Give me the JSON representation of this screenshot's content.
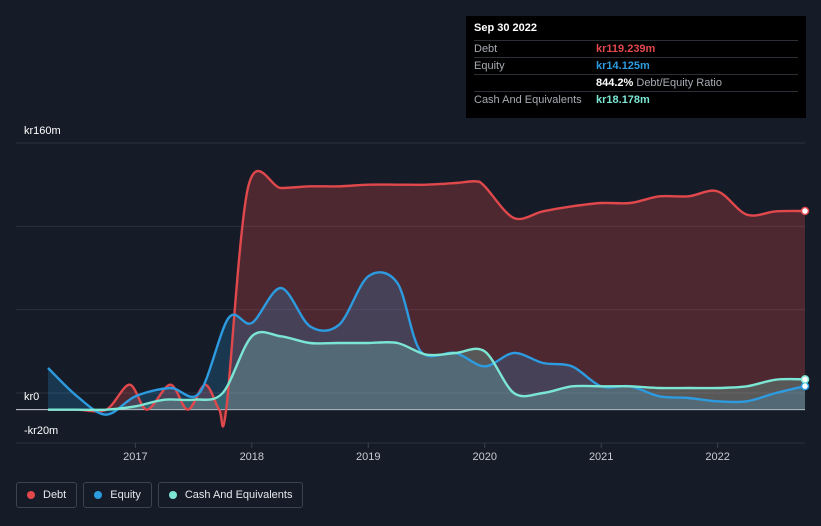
{
  "tooltip": {
    "date": "Sep 30 2022",
    "rows": [
      {
        "label": "Debt",
        "value": "kr119.239m",
        "color": "#e0484c"
      },
      {
        "label": "Equity",
        "value": "kr14.125m",
        "color": "#2d9be0"
      },
      {
        "label": "",
        "value": "844.2%",
        "suffix": "Debt/Equity Ratio",
        "color": "#ffffff"
      },
      {
        "label": "Cash And Equivalents",
        "value": "kr18.178m",
        "color": "#7ce6d4"
      }
    ]
  },
  "legend": [
    {
      "label": "Debt",
      "color": "#e0484c"
    },
    {
      "label": "Equity",
      "color": "#2d9be0"
    },
    {
      "label": "Cash And Equivalents",
      "color": "#7ce6d4"
    }
  ],
  "chart_data": {
    "type": "area",
    "ylim": [
      -20,
      160
    ],
    "y_ticks": [
      "kr160m",
      "kr0",
      "-kr20m"
    ],
    "x_ticks": [
      "2017",
      "2018",
      "2019",
      "2020",
      "2021",
      "2022"
    ],
    "x_range": [
      2016.25,
      2022.75
    ],
    "series": [
      {
        "name": "Debt",
        "color": "#e0484c",
        "x": [
          2016.25,
          2016.5,
          2016.75,
          2016.95,
          2017.1,
          2017.3,
          2017.45,
          2017.6,
          2017.72,
          2017.78,
          2017.97,
          2018.25,
          2018.5,
          2018.75,
          2019.0,
          2019.25,
          2019.5,
          2019.75,
          2019.92,
          2020.0,
          2020.25,
          2020.5,
          2020.75,
          2021.0,
          2021.25,
          2021.5,
          2021.75,
          2022.0,
          2022.25,
          2022.5,
          2022.75
        ],
        "y": [
          0,
          0,
          0,
          15,
          0,
          15,
          0,
          15,
          0,
          0,
          134,
          133,
          134,
          134,
          135,
          135,
          135,
          136,
          137,
          134,
          115,
          119,
          122,
          124,
          124,
          128,
          128,
          131,
          117,
          119,
          119.2
        ]
      },
      {
        "name": "Equity",
        "color": "#2d9be0",
        "x": [
          2016.25,
          2016.5,
          2016.75,
          2017.0,
          2017.3,
          2017.55,
          2017.8,
          2018.0,
          2018.25,
          2018.5,
          2018.75,
          2019.0,
          2019.25,
          2019.45,
          2019.75,
          2020.0,
          2020.25,
          2020.5,
          2020.75,
          2021.0,
          2021.25,
          2021.5,
          2021.75,
          2022.0,
          2022.25,
          2022.5,
          2022.75
        ],
        "y": [
          25,
          8,
          -3,
          8,
          13,
          10,
          55,
          52,
          73,
          50,
          51,
          80,
          76,
          35,
          34,
          26,
          34,
          28,
          26,
          14,
          14,
          8,
          7,
          5,
          5,
          10,
          14.1
        ]
      },
      {
        "name": "Cash And Equivalents",
        "color": "#7ce6d4",
        "x": [
          2016.25,
          2016.5,
          2016.75,
          2017.0,
          2017.25,
          2017.5,
          2017.75,
          2018.0,
          2018.25,
          2018.5,
          2018.75,
          2019.0,
          2019.25,
          2019.5,
          2019.75,
          2020.0,
          2020.25,
          2020.5,
          2020.75,
          2021.0,
          2021.25,
          2021.5,
          2021.75,
          2022.0,
          2022.25,
          2022.5,
          2022.75
        ],
        "y": [
          0,
          0,
          0,
          2,
          6,
          6,
          10,
          44,
          44,
          40,
          40,
          40,
          40,
          33,
          34,
          35,
          10,
          10,
          14,
          14,
          14,
          13,
          13,
          13,
          14,
          18,
          18.2
        ]
      }
    ]
  }
}
